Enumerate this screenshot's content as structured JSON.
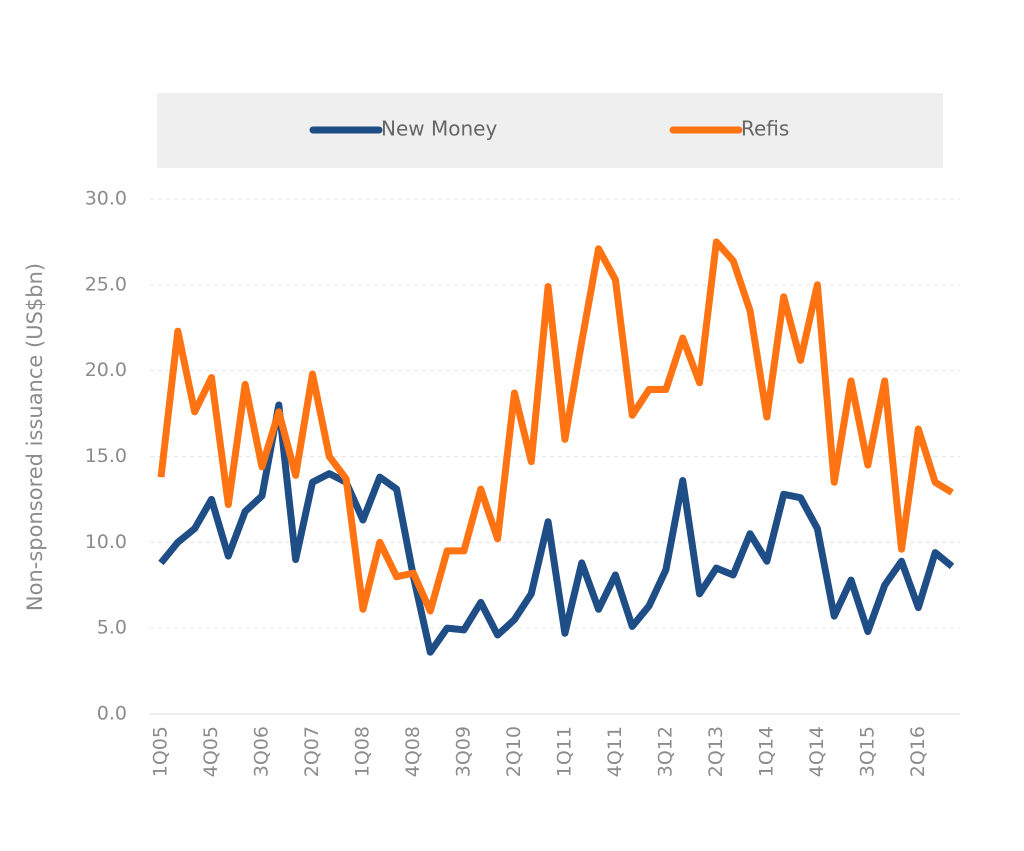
{
  "chart_data": {
    "type": "line",
    "y_label": "Non-sponsored issuance (US$bn)",
    "categories": [
      "1Q05",
      null,
      null,
      "4Q05",
      null,
      null,
      "3Q06",
      null,
      null,
      "2Q07",
      null,
      null,
      "1Q08",
      null,
      null,
      "4Q08",
      null,
      null,
      "3Q09",
      null,
      null,
      "2Q10",
      null,
      null,
      "1Q11",
      null,
      null,
      "4Q11",
      null,
      null,
      "3Q12",
      null,
      null,
      "2Q13",
      null,
      null,
      "1Q14",
      null,
      null,
      "4Q14",
      null,
      null,
      "3Q15",
      null,
      null,
      "2Q16",
      null,
      null
    ],
    "series": [
      {
        "name": "New Money",
        "color": "#1f4e87",
        "values": [
          8.8,
          10.0,
          10.8,
          12.5,
          9.2,
          11.8,
          12.7,
          18.0,
          9.0,
          13.5,
          14.0,
          13.5,
          11.3,
          13.8,
          13.1,
          8.0,
          3.6,
          5.0,
          4.9,
          6.5,
          4.6,
          5.5,
          7.0,
          11.2,
          4.7,
          8.8,
          6.1,
          8.1,
          5.1,
          6.3,
          8.4,
          13.6,
          7.0,
          8.5,
          8.1,
          10.5,
          8.9,
          12.8,
          12.6,
          10.8,
          5.7,
          7.8,
          4.8,
          7.5,
          8.9,
          6.2,
          9.4,
          8.6
        ]
      },
      {
        "name": "Refis",
        "color": "#ff7312",
        "values": [
          13.8,
          22.3,
          17.6,
          19.6,
          12.2,
          19.2,
          14.4,
          17.6,
          13.9,
          19.8,
          15.0,
          13.7,
          6.1,
          10.0,
          8.0,
          8.2,
          6.0,
          9.5,
          9.5,
          13.1,
          10.2,
          18.7,
          14.7,
          24.9,
          16.0,
          21.7,
          27.1,
          25.3,
          17.4,
          18.9,
          18.9,
          21.9,
          19.3,
          27.5,
          26.4,
          23.5,
          17.3,
          24.3,
          20.6,
          25.0,
          13.5,
          19.4,
          14.5,
          19.4,
          9.6,
          16.6,
          13.5,
          12.9
        ]
      }
    ],
    "ylim": [
      0,
      30
    ],
    "yticks": [
      {
        "value": 0,
        "label": "0.0"
      },
      {
        "value": 5,
        "label": "5.0"
      },
      {
        "value": 10,
        "label": "10.0"
      },
      {
        "value": 15,
        "label": "15.0"
      },
      {
        "value": 20,
        "label": "20.0"
      },
      {
        "value": 25,
        "label": "25.0"
      },
      {
        "value": 30,
        "label": "30.0"
      }
    ],
    "grid": true,
    "legend": "top"
  }
}
